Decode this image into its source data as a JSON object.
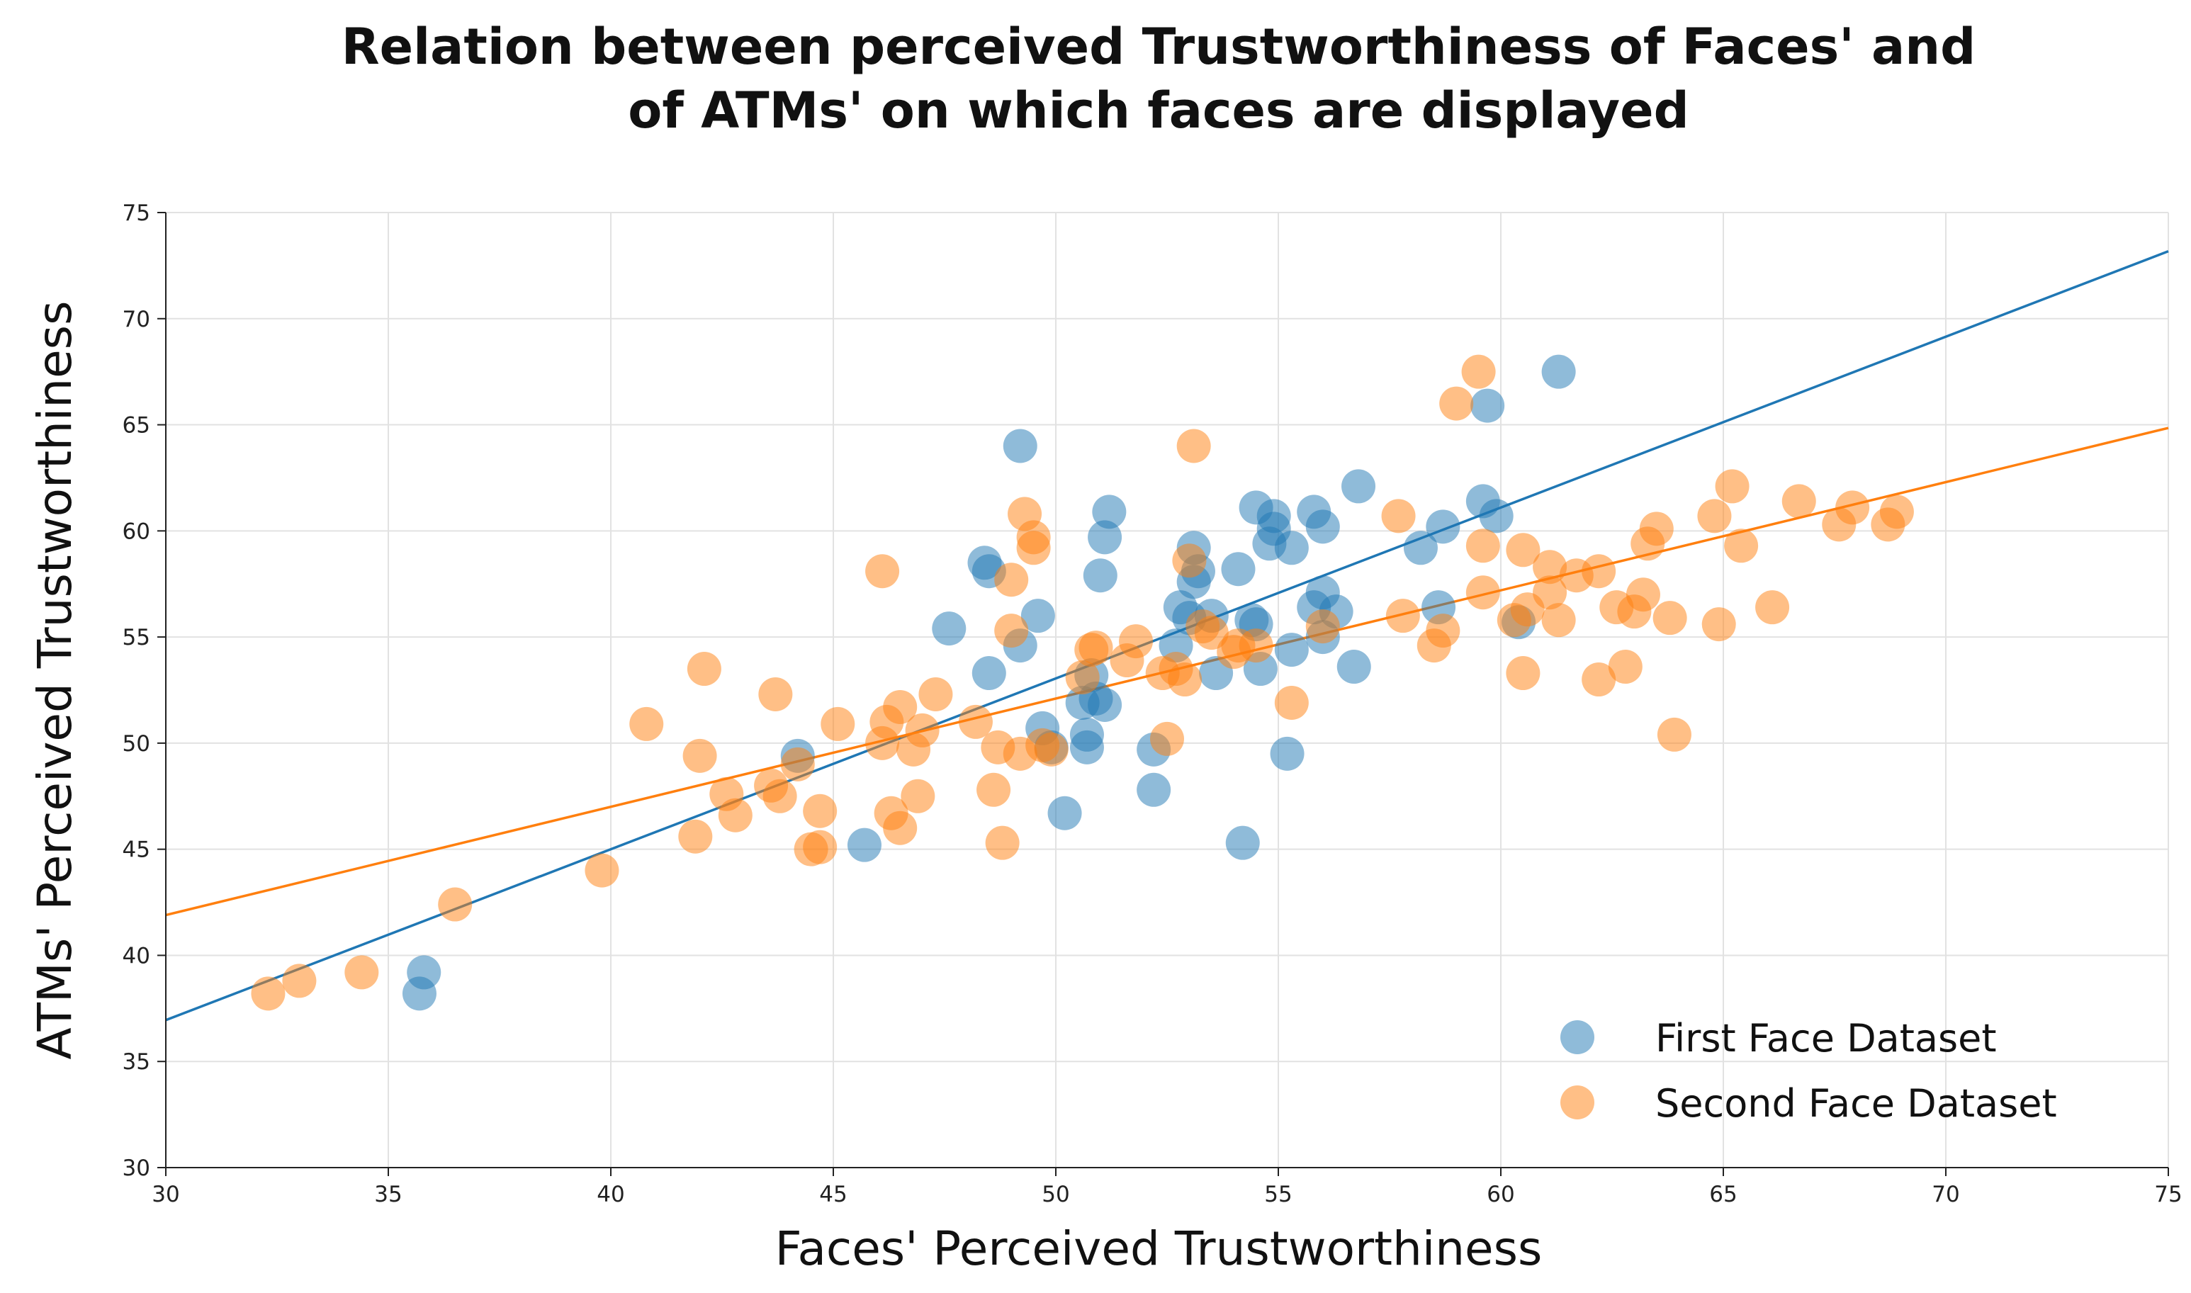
{
  "chart_data": {
    "type": "scatter",
    "title": [
      "Relation between perceived Trustworthiness of Faces' and",
      "of ATMs' on which faces are displayed"
    ],
    "xlabel": "Faces' Perceived Trustworthiness",
    "ylabel": "ATMs' Perceived Trustworthiness",
    "xlim": [
      30,
      75
    ],
    "ylim": [
      30,
      75
    ],
    "xticks": [
      "30",
      "35",
      "40",
      "45",
      "50",
      "55",
      "60",
      "65",
      "70",
      "75"
    ],
    "yticks": [
      "30",
      "35",
      "40",
      "45",
      "50",
      "55",
      "60",
      "65",
      "70",
      "75"
    ],
    "grid": true,
    "legend_position": "lower-right",
    "series": [
      {
        "name": "First Face Dataset",
        "color": "#1f77b4",
        "fit_line": {
          "slope": 0.805,
          "intercept": 12.8
        },
        "points": [
          [
            35.8,
            39.2
          ],
          [
            35.7,
            38.2
          ],
          [
            44.2,
            49.4
          ],
          [
            45.7,
            45.2
          ],
          [
            47.6,
            55.4
          ],
          [
            48.4,
            58.5
          ],
          [
            48.5,
            58.1
          ],
          [
            48.5,
            53.3
          ],
          [
            49.2,
            64.0
          ],
          [
            49.2,
            54.6
          ],
          [
            49.6,
            56.0
          ],
          [
            49.7,
            50.7
          ],
          [
            49.9,
            49.8
          ],
          [
            50.2,
            46.7
          ],
          [
            50.6,
            51.9
          ],
          [
            50.7,
            50.4
          ],
          [
            50.7,
            49.8
          ],
          [
            50.8,
            53.2
          ],
          [
            50.9,
            52.1
          ],
          [
            51.0,
            57.9
          ],
          [
            51.1,
            59.7
          ],
          [
            51.2,
            60.9
          ],
          [
            51.1,
            51.8
          ],
          [
            52.2,
            49.7
          ],
          [
            52.2,
            47.8
          ],
          [
            52.7,
            54.6
          ],
          [
            52.8,
            56.4
          ],
          [
            53.0,
            55.9
          ],
          [
            53.1,
            59.2
          ],
          [
            53.1,
            57.6
          ],
          [
            53.2,
            58.1
          ],
          [
            53.5,
            56.0
          ],
          [
            53.6,
            53.3
          ],
          [
            54.1,
            58.2
          ],
          [
            54.2,
            45.3
          ],
          [
            54.4,
            55.8
          ],
          [
            54.5,
            61.1
          ],
          [
            54.5,
            55.6
          ],
          [
            54.6,
            53.5
          ],
          [
            54.9,
            60.7
          ],
          [
            54.9,
            60.1
          ],
          [
            54.8,
            59.4
          ],
          [
            55.2,
            49.5
          ],
          [
            55.3,
            59.2
          ],
          [
            55.3,
            54.4
          ],
          [
            55.8,
            60.9
          ],
          [
            55.8,
            56.4
          ],
          [
            56.0,
            60.2
          ],
          [
            56.0,
            57.1
          ],
          [
            56.0,
            55.0
          ],
          [
            56.3,
            56.2
          ],
          [
            56.7,
            53.6
          ],
          [
            56.8,
            62.1
          ],
          [
            58.2,
            59.2
          ],
          [
            58.6,
            56.4
          ],
          [
            58.7,
            60.2
          ],
          [
            59.6,
            61.4
          ],
          [
            59.7,
            65.9
          ],
          [
            59.9,
            60.7
          ],
          [
            60.4,
            55.7
          ],
          [
            61.3,
            67.5
          ]
        ]
      },
      {
        "name": "Second Face Dataset",
        "color": "#ff7f0e",
        "fit_line": {
          "slope": 0.51,
          "intercept": 26.6
        },
        "points": [
          [
            32.3,
            38.2
          ],
          [
            33.0,
            38.8
          ],
          [
            34.4,
            39.2
          ],
          [
            36.5,
            42.4
          ],
          [
            39.8,
            44.0
          ],
          [
            40.8,
            50.9
          ],
          [
            41.9,
            45.6
          ],
          [
            42.0,
            49.4
          ],
          [
            42.1,
            53.5
          ],
          [
            42.6,
            47.6
          ],
          [
            42.8,
            46.6
          ],
          [
            43.6,
            48.0
          ],
          [
            43.7,
            52.3
          ],
          [
            43.8,
            47.5
          ],
          [
            44.2,
            49.0
          ],
          [
            44.5,
            45.0
          ],
          [
            44.7,
            46.8
          ],
          [
            44.7,
            45.1
          ],
          [
            45.1,
            50.9
          ],
          [
            46.1,
            58.1
          ],
          [
            46.1,
            50.0
          ],
          [
            46.2,
            51.0
          ],
          [
            46.3,
            46.7
          ],
          [
            46.5,
            51.7
          ],
          [
            46.5,
            46.0
          ],
          [
            46.8,
            49.7
          ],
          [
            46.9,
            47.5
          ],
          [
            47.0,
            50.6
          ],
          [
            47.3,
            52.3
          ],
          [
            48.2,
            51.0
          ],
          [
            48.6,
            47.8
          ],
          [
            48.7,
            49.8
          ],
          [
            48.8,
            45.3
          ],
          [
            49.0,
            57.7
          ],
          [
            49.0,
            55.3
          ],
          [
            49.2,
            49.5
          ],
          [
            49.3,
            60.8
          ],
          [
            49.5,
            59.7
          ],
          [
            49.5,
            59.2
          ],
          [
            49.7,
            49.9
          ],
          [
            49.9,
            49.7
          ],
          [
            50.6,
            53.1
          ],
          [
            50.8,
            54.4
          ],
          [
            50.9,
            54.5
          ],
          [
            51.6,
            53.9
          ],
          [
            51.8,
            54.8
          ],
          [
            52.4,
            53.3
          ],
          [
            52.5,
            50.2
          ],
          [
            52.7,
            53.5
          ],
          [
            52.9,
            53.0
          ],
          [
            53.0,
            58.6
          ],
          [
            53.1,
            64.0
          ],
          [
            53.3,
            55.5
          ],
          [
            53.5,
            55.2
          ],
          [
            54.0,
            54.3
          ],
          [
            54.1,
            54.6
          ],
          [
            54.5,
            54.6
          ],
          [
            55.3,
            51.9
          ],
          [
            56.0,
            55.5
          ],
          [
            57.7,
            60.7
          ],
          [
            57.8,
            56.0
          ],
          [
            58.5,
            54.6
          ],
          [
            58.7,
            55.3
          ],
          [
            59.0,
            66.0
          ],
          [
            59.5,
            67.5
          ],
          [
            59.6,
            59.3
          ],
          [
            59.6,
            57.1
          ],
          [
            60.3,
            55.8
          ],
          [
            60.5,
            59.1
          ],
          [
            60.6,
            56.3
          ],
          [
            60.5,
            53.3
          ],
          [
            61.1,
            58.3
          ],
          [
            61.1,
            57.1
          ],
          [
            61.3,
            55.8
          ],
          [
            61.7,
            57.9
          ],
          [
            62.2,
            58.1
          ],
          [
            62.2,
            53.0
          ],
          [
            62.6,
            56.4
          ],
          [
            62.8,
            53.6
          ],
          [
            63.0,
            56.2
          ],
          [
            63.2,
            57.0
          ],
          [
            63.3,
            59.4
          ],
          [
            63.5,
            60.1
          ],
          [
            63.8,
            55.9
          ],
          [
            63.9,
            50.4
          ],
          [
            64.8,
            60.7
          ],
          [
            64.9,
            55.6
          ],
          [
            65.2,
            62.1
          ],
          [
            65.4,
            59.3
          ],
          [
            66.1,
            56.4
          ],
          [
            66.7,
            61.4
          ],
          [
            67.6,
            60.3
          ],
          [
            67.9,
            61.1
          ],
          [
            68.7,
            60.3
          ],
          [
            68.9,
            60.9
          ]
        ]
      }
    ]
  }
}
